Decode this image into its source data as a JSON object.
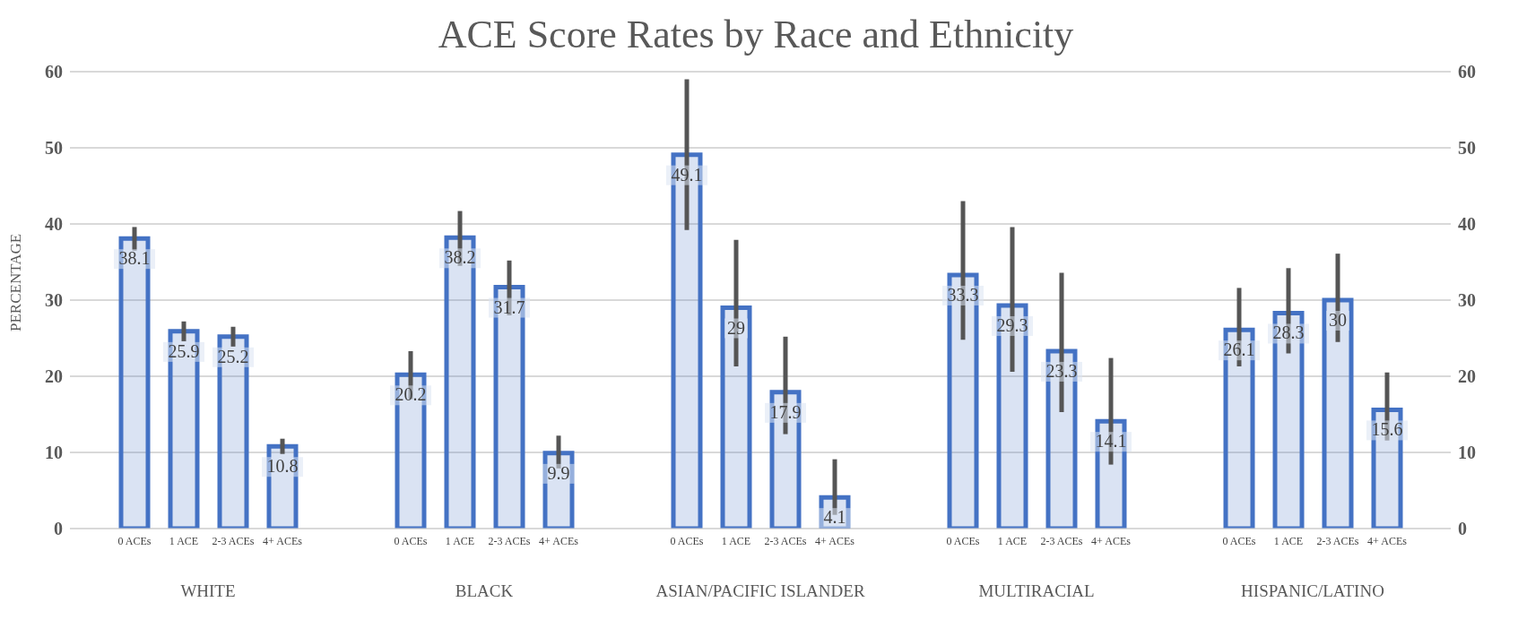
{
  "chart_data": {
    "type": "bar",
    "title": "ACE Score Rates by Race and Ethnicity",
    "ylabel": "PERCENTAGE",
    "categories": [
      "WHITE",
      "BLACK",
      "ASIAN/PACIFIC ISLANDER",
      "MULTIRACIAL",
      "HISPANIC/LATINO"
    ],
    "series": [
      {
        "name": "0 ACEs",
        "color": "#4472c4",
        "values": [
          38.1,
          20.2,
          49.1,
          33.3,
          26.1
        ],
        "errors": [
          [
            36.5,
            39.6
          ],
          [
            17,
            23.3
          ],
          [
            39.2,
            59
          ],
          [
            24.8,
            43
          ],
          [
            21.3,
            31.6
          ]
        ]
      },
      {
        "name": "1 ACE",
        "color": "#4472c4",
        "values": [
          25.9,
          38.2,
          29,
          29.3,
          28.3
        ],
        "errors": [
          [
            24.6,
            27.2
          ],
          [
            34.5,
            41.7
          ],
          [
            21.3,
            37.9
          ],
          [
            20.6,
            39.6
          ],
          [
            23,
            34.2
          ]
        ]
      },
      {
        "name": "2-3 ACEs",
        "color": "#4472c4",
        "values": [
          25.2,
          31.7,
          17.9,
          23.3,
          30
        ],
        "errors": [
          [
            23.9,
            26.5
          ],
          [
            28,
            35.2
          ],
          [
            12.4,
            25.2
          ],
          [
            15.3,
            33.6
          ],
          [
            24.5,
            36.1
          ]
        ]
      },
      {
        "name": "4+ ACEs",
        "color": "#4472c4",
        "values": [
          10.8,
          9.9,
          4.1,
          14.1,
          15.6
        ],
        "errors": [
          [
            9.8,
            11.8
          ],
          [
            7.9,
            12.2
          ],
          [
            1.8,
            9.1
          ],
          [
            8.4,
            22.4
          ],
          [
            11.6,
            20.5
          ]
        ]
      }
    ],
    "ylim": [
      0,
      60
    ],
    "yticks": [
      0,
      10,
      20,
      30,
      40,
      50,
      60
    ],
    "y2lim": [
      0,
      60
    ],
    "y2ticks": [
      0,
      10,
      20,
      30,
      40,
      50,
      60
    ],
    "grid": "y",
    "data_labels": true
  }
}
